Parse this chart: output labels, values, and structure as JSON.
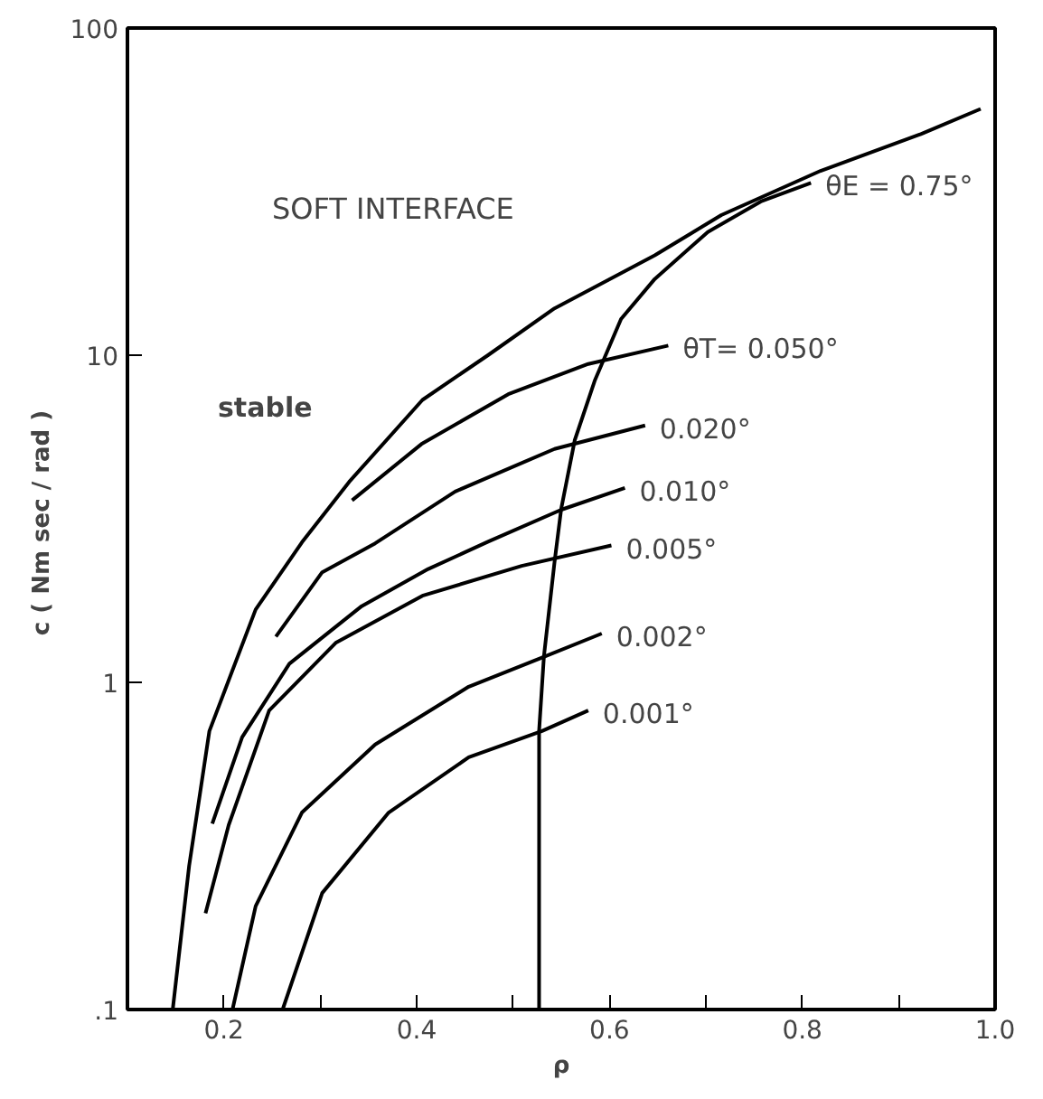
{
  "chart_data": {
    "type": "line",
    "title": "SOFT INTERFACE",
    "xlabel": "ρ",
    "ylabel": "c  ( Nm sec / rad )",
    "log": "y",
    "grid": false,
    "marker": "none",
    "line_style": "solid",
    "xlim": [
      0.1,
      1.0
    ],
    "xticks": [
      0.2,
      0.4,
      0.6,
      0.8,
      {
        "value": 1.0,
        "label": "1.0"
      },
      {
        "value": 0.3,
        "label": null
      },
      {
        "value": 0.5,
        "label": null
      },
      {
        "value": 0.7,
        "label": null
      },
      {
        "value": 0.9,
        "label": null
      }
    ],
    "ylim": [
      0.1,
      100
    ],
    "yticks": [
      {
        "value": 0.1,
        "label": ".1"
      },
      1,
      10,
      100
    ],
    "annotations": [
      "stable"
    ],
    "series": [
      {
        "color": "#000000",
        "x": [
          0.147,
          0.164,
          0.185,
          0.233,
          0.281,
          0.33,
          0.406,
          0.474,
          0.543,
          0.647,
          0.716,
          0.819,
          0.923,
          0.985
        ],
        "values": [
          0.1,
          0.275,
          0.71,
          1.67,
          2.68,
          4.1,
          7.3,
          10,
          13.9,
          20.2,
          26.8,
          36.6,
          47.4,
          56.6
        ]
      },
      {
        "name": "θT= 0.050°",
        "color": "#000000",
        "x": [
          0.333,
          0.405,
          0.495,
          0.578,
          0.661
        ],
        "values": [
          3.6,
          5.35,
          7.6,
          9.4,
          10.7
        ]
      },
      {
        "name": "0.020°",
        "color": "#000000",
        "x": [
          0.254,
          0.302,
          0.357,
          0.44,
          0.543,
          0.637
        ],
        "values": [
          1.38,
          2.17,
          2.66,
          3.83,
          5.17,
          6.1
        ]
      },
      {
        "name": "0.010°",
        "color": "#000000",
        "x": [
          0.188,
          0.219,
          0.268,
          0.343,
          0.412,
          0.474,
          0.55,
          0.616
        ],
        "values": [
          0.37,
          0.68,
          1.14,
          1.71,
          2.22,
          2.69,
          3.37,
          3.93
        ]
      },
      {
        "name": "0.005°",
        "color": "#000000",
        "x": [
          0.181,
          0.205,
          0.247,
          0.316,
          0.406,
          0.509,
          0.602
        ],
        "values": [
          0.197,
          0.366,
          0.82,
          1.32,
          1.84,
          2.27,
          2.62
        ]
      },
      {
        "name": "0.002°",
        "color": "#000000",
        "x": [
          0.209,
          0.233,
          0.281,
          0.357,
          0.454,
          0.53,
          0.592
        ],
        "values": [
          0.1,
          0.207,
          0.4,
          0.646,
          0.97,
          1.19,
          1.41
        ]
      },
      {
        "name": "0.001°",
        "color": "#000000",
        "x": [
          0.261,
          0.302,
          0.371,
          0.454,
          0.53,
          0.578
        ],
        "values": [
          0.1,
          0.227,
          0.4,
          0.59,
          0.71,
          0.82
        ]
      },
      {
        "name": "θE = 0.75°",
        "color": "#000000",
        "x": [
          0.527,
          0.527,
          0.527,
          0.532,
          0.543,
          0.55,
          0.564,
          0.585,
          0.612,
          0.647,
          0.702,
          0.757,
          0.809
        ],
        "values": [
          0.1,
          0.4,
          0.71,
          1.2,
          2.33,
          3.4,
          5.5,
          8.4,
          12.9,
          17.1,
          23.8,
          29.5,
          33.6
        ]
      }
    ]
  }
}
